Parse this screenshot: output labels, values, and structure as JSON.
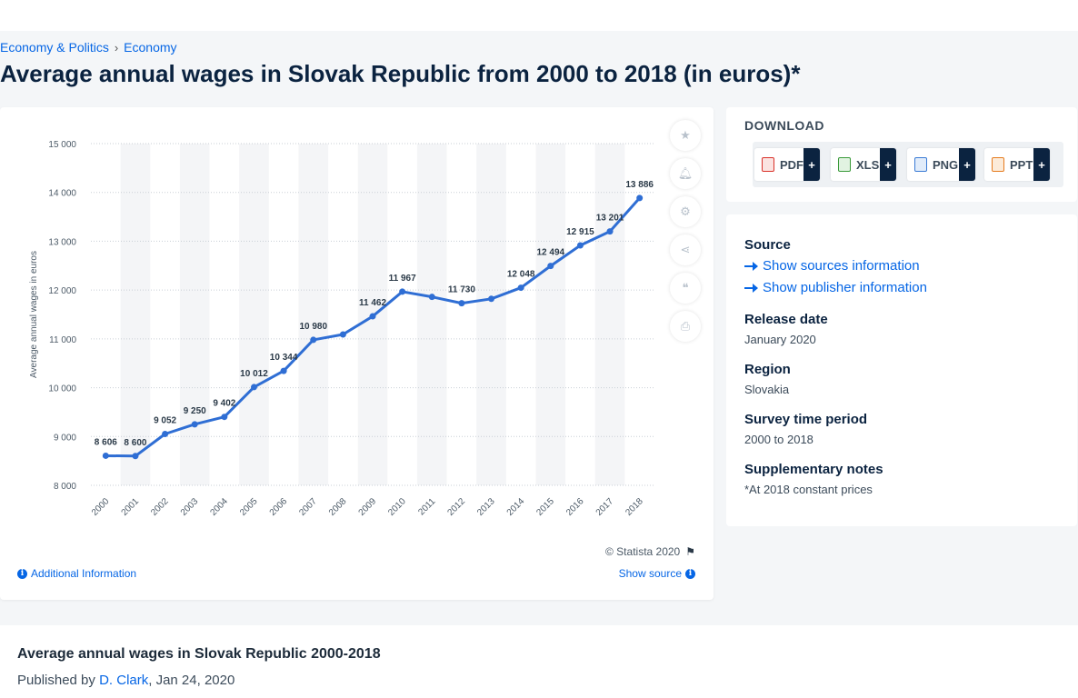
{
  "breadcrumb": {
    "items": [
      "Economy & Politics",
      "Economy"
    ],
    "separator": "›"
  },
  "page_title": "Average annual wages in Slovak Republic from 2000 to 2018 (in euros)*",
  "chart_data": {
    "type": "line",
    "title": "",
    "xlabel": "",
    "ylabel": "Average annual wages in euros",
    "categories": [
      "2000",
      "2001",
      "2002",
      "2003",
      "2004",
      "2005",
      "2006",
      "2007",
      "2008",
      "2009",
      "2010",
      "2011",
      "2012",
      "2013",
      "2014",
      "2015",
      "2016",
      "2017",
      "2018"
    ],
    "values": [
      8606,
      8600,
      9052,
      9250,
      9402,
      10012,
      10344,
      10980,
      11090,
      11462,
      11967,
      11860,
      11730,
      11820,
      12048,
      12494,
      12915,
      13201,
      13886
    ],
    "data_labels": [
      "8 606",
      "8 600",
      "9 052",
      "9 250",
      "9 402",
      "10 012",
      "10 344",
      "10 980",
      "",
      "11 462",
      "11 967",
      "",
      "11 730",
      "",
      "12 048",
      "12 494",
      "12 915",
      "13 201",
      "13 886"
    ],
    "yticks": [
      8000,
      9000,
      10000,
      11000,
      12000,
      13000,
      14000,
      15000
    ],
    "ytick_labels": [
      "8 000",
      "9 000",
      "10 000",
      "11 000",
      "12 000",
      "13 000",
      "14 000",
      "15 000"
    ],
    "ylim": [
      8000,
      15000
    ],
    "grid": true,
    "line_color": "#2f6ed4"
  },
  "chart_footer": {
    "copyright": "© Statista 2020",
    "additional_info": "Additional Information",
    "show_source": "Show source"
  },
  "tools": [
    "star-icon",
    "bell-icon",
    "gear-icon",
    "share-icon",
    "quote-icon",
    "print-icon"
  ],
  "download": {
    "title": "DOWNLOAD",
    "buttons": [
      {
        "label": "PDF",
        "color": "#d9322a"
      },
      {
        "label": "XLS",
        "color": "#3a9a3a"
      },
      {
        "label": "PNG",
        "color": "#3a7bd5"
      },
      {
        "label": "PPT",
        "color": "#e57c1f"
      }
    ],
    "plus": "+"
  },
  "meta": {
    "source_heading": "Source",
    "show_sources": "Show sources information",
    "show_publisher": "Show publisher information",
    "release_heading": "Release date",
    "release_value": "January 2020",
    "region_heading": "Region",
    "region_value": "Slovakia",
    "survey_heading": "Survey time period",
    "survey_value": "2000 to 2018",
    "notes_heading": "Supplementary notes",
    "notes_value": "*At 2018 constant prices"
  },
  "bottom": {
    "title": "Average annual wages in Slovak Republic 2000-2018",
    "published_prefix": "Published by ",
    "author": "D. Clark",
    "date": ", Jan 24, 2020"
  }
}
